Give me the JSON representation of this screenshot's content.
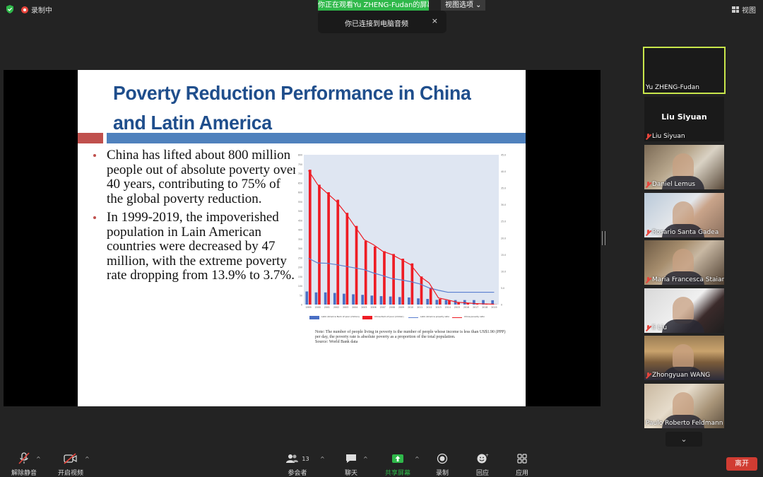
{
  "topbar": {
    "recording_label": "录制中",
    "share_banner": "你正在观看Yu  ZHENG-Fudan的屏幕",
    "view_options_label": "视图选项",
    "audio_toast": "你已连接到电脑音频",
    "toast_close": "×",
    "view_label": "视图"
  },
  "slide": {
    "title_line1": "Poverty Reduction Performance in China",
    "title_line2": "and Latin America",
    "bullets": [
      "China has lifted about 800 million people out of absolute poverty over 40 years, contributing to 75% of the global poverty reduction.",
      "In 1999-2019, the impoverished population in Lain American countries were decreased by 47 million, with the extreme poverty rate dropping from 13.9% to 3.7%."
    ],
    "note": "Note: The number of people living in poverty is the number of people whose income is less than US$1.90 (PPP) per day, the poverty rate is absolute poverty as a proportion of the total population.",
    "source": "Source: World Bank data"
  },
  "chart_data": {
    "type": "bar",
    "x": [
      "1999",
      "2000",
      "2001",
      "2002",
      "2003",
      "2004",
      "2005",
      "2006",
      "2007",
      "2008",
      "2009",
      "2010",
      "2011",
      "2012",
      "2013",
      "2014",
      "2015",
      "2016",
      "2017",
      "2018",
      "2019"
    ],
    "series": [
      {
        "name": "Latin America Num of poor (million)",
        "kind": "bar",
        "color": "#4a6fc4",
        "values": [
          70,
          65,
          65,
          62,
          58,
          55,
          52,
          48,
          45,
          43,
          40,
          38,
          33,
          30,
          25,
          24,
          24,
          24,
          24,
          24,
          23
        ]
      },
      {
        "name": "China Num of poor (million)",
        "kind": "bar",
        "color": "#ee1c25",
        "values": [
          720,
          640,
          600,
          560,
          490,
          420,
          340,
          310,
          285,
          270,
          245,
          220,
          150,
          90,
          30,
          22,
          12,
          8,
          4,
          2,
          1
        ]
      },
      {
        "name": "Latin America poverty ratio",
        "kind": "line",
        "color": "#5a7fd0",
        "values": [
          13.9,
          12.5,
          12.4,
          12.0,
          11.5,
          11.0,
          10.5,
          9.5,
          8.7,
          7.8,
          7.4,
          6.9,
          6.2,
          5.0,
          4.3,
          3.7,
          3.7,
          3.7,
          3.7,
          3.7,
          3.7
        ]
      },
      {
        "name": "China poverty ratio",
        "kind": "line",
        "color": "#ee1c25",
        "values": [
          40.3,
          36.0,
          33.5,
          31.0,
          27.5,
          23.5,
          19.5,
          18.0,
          16.0,
          15.0,
          13.5,
          12.0,
          8.5,
          6.5,
          2.0,
          1.4,
          0.7,
          0.5,
          0.3,
          0.2,
          0.1
        ]
      }
    ],
    "ylim_left": [
      0,
      800
    ],
    "ylim_right": [
      0,
      45
    ],
    "left_ticks": [
      "0",
      "50",
      "100",
      "150",
      "200",
      "250",
      "300",
      "350",
      "400",
      "450",
      "500",
      "550",
      "600",
      "650",
      "700",
      "750",
      "800"
    ],
    "right_ticks": [
      "0",
      "5.0",
      "10.0",
      "15.0",
      "20.0",
      "25.0",
      "30.0",
      "35.0",
      "40.0",
      "45.0"
    ],
    "legend_position": "bottom",
    "grid": false
  },
  "participants": [
    {
      "name": "Yu ZHENG-Fudan",
      "muted": false,
      "active": true,
      "video": false
    },
    {
      "name": "Liu Siyuan",
      "muted": true,
      "video": false
    },
    {
      "name": "Daniel Lemus",
      "muted": true,
      "video": true
    },
    {
      "name": "Rosario Santa Gadea",
      "muted": true,
      "video": true
    },
    {
      "name": "Maria Francesca Staiano",
      "muted": true,
      "video": true
    },
    {
      "name": "li Liu",
      "muted": true,
      "video": true
    },
    {
      "name": "Zhongyuan WANG",
      "muted": true,
      "video": true
    },
    {
      "name": "Paulo Roberto Feldmann",
      "muted": false,
      "video": true
    }
  ],
  "toolbar": {
    "unmute": "解除静音",
    "start_video": "开启视频",
    "participants": "参会者",
    "participant_count": "13",
    "chat": "聊天",
    "share_screen": "共享屏幕",
    "record": "录制",
    "reactions": "回应",
    "apps": "应用",
    "leave": "离开"
  },
  "colors": {
    "accent_green": "#2fb84a",
    "leave_red": "#d13c32",
    "title_blue": "#1f4e8c"
  }
}
